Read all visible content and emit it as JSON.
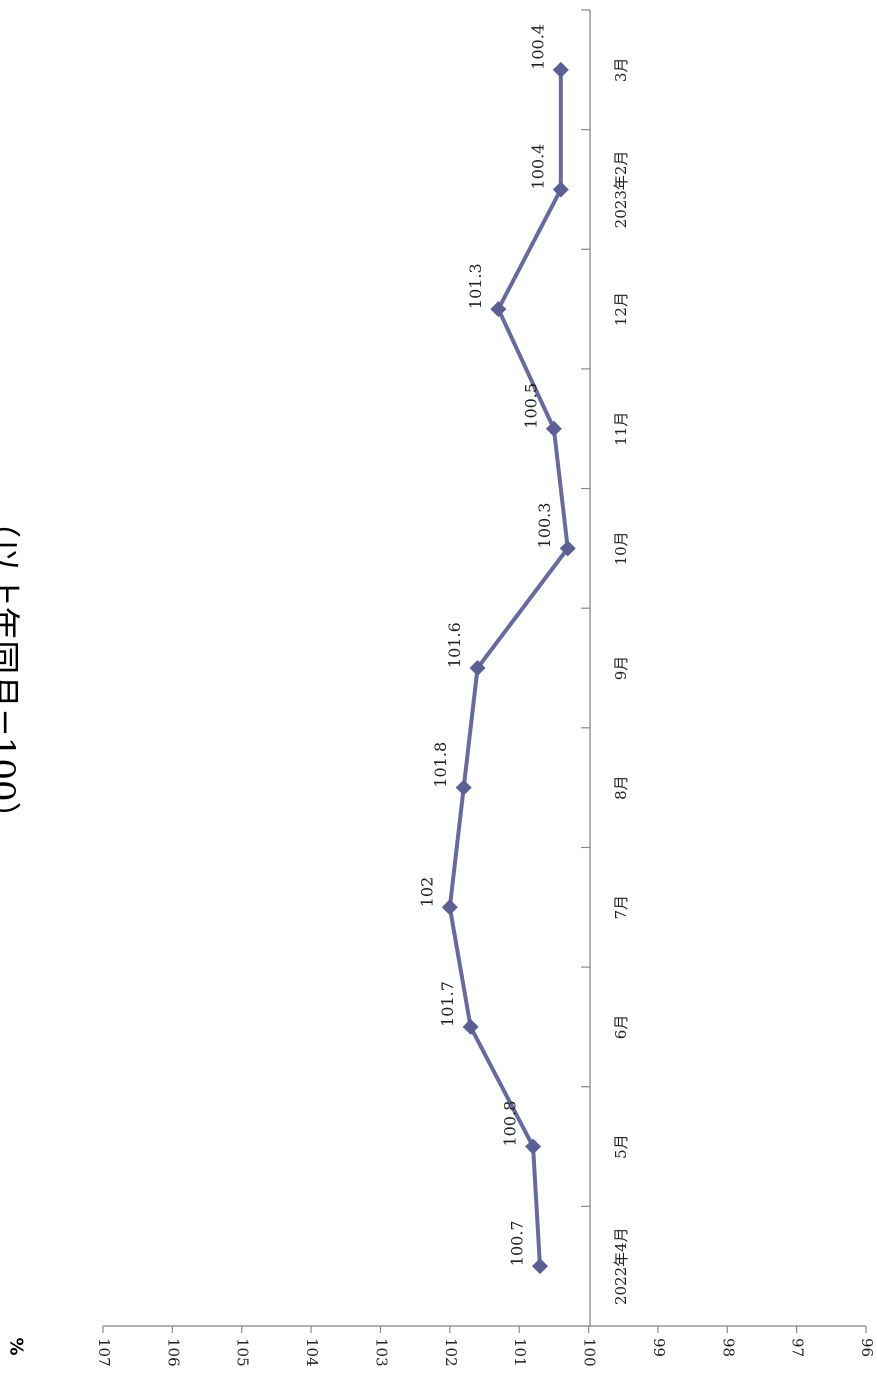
{
  "page": {
    "unit_label": "%",
    "partial_heading": "（以上年同月=100）"
  },
  "chart_data": {
    "type": "line",
    "orientation": "rotated-90",
    "categories": [
      "2022年4月",
      "5月",
      "6月",
      "7月",
      "8月",
      "9月",
      "10月",
      "11月",
      "12月",
      "2023年2月",
      "3月"
    ],
    "series": [
      {
        "values": [
          100.7,
          100.8,
          101.7,
          102,
          101.8,
          101.6,
          100.3,
          100.5,
          101.3,
          100.4,
          100.4
        ],
        "labels": [
          "100.7",
          "100.8",
          "101.7",
          "102",
          "101.8",
          "101.6",
          "100.3",
          "100.5",
          "101.3",
          "100.4",
          "100.4"
        ]
      }
    ],
    "ylim": [
      96,
      107
    ],
    "yticks": [
      "107",
      "106",
      "105",
      "104",
      "103",
      "102",
      "101",
      "100",
      "99",
      "98",
      "97",
      "96"
    ],
    "grid": false,
    "colors": {
      "line": "#666a9e",
      "marker": "#5b5f95",
      "axis": "#888888"
    }
  }
}
